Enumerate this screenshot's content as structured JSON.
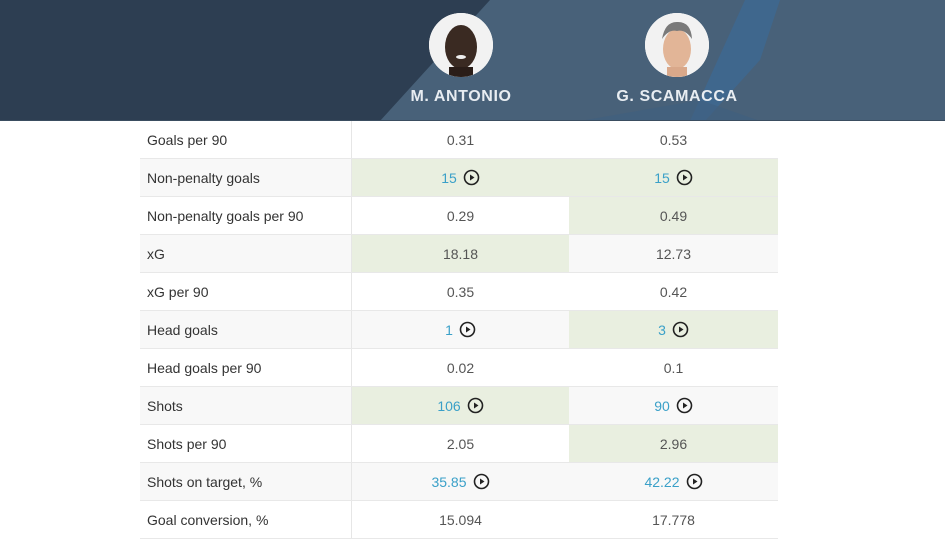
{
  "header": {
    "players": [
      {
        "name": "M. ANTONIO",
        "avatar_icon": "player-photo"
      },
      {
        "name": "G. SCAMACCA",
        "avatar_icon": "player-photo"
      }
    ],
    "colors": {
      "bg_dark": "#2d3e52",
      "bg_light": "#486179",
      "accent": "#3c6a96"
    }
  },
  "table": {
    "colors": {
      "win": "#e9efe0",
      "link": "#3aa0c8",
      "alt_row": "#f8f8f8"
    },
    "rows": [
      {
        "label": "Goals per 90",
        "p1": "0.31",
        "p2": "0.53",
        "p1_win": false,
        "p2_win": false,
        "video": false
      },
      {
        "label": "Non-penalty goals",
        "p1": "15",
        "p2": "15",
        "p1_win": true,
        "p2_win": true,
        "video": true
      },
      {
        "label": "Non-penalty goals per 90",
        "p1": "0.29",
        "p2": "0.49",
        "p1_win": false,
        "p2_win": true,
        "video": false
      },
      {
        "label": "xG",
        "p1": "18.18",
        "p2": "12.73",
        "p1_win": true,
        "p2_win": false,
        "video": false
      },
      {
        "label": "xG per 90",
        "p1": "0.35",
        "p2": "0.42",
        "p1_win": false,
        "p2_win": false,
        "video": false
      },
      {
        "label": "Head goals",
        "p1": "1",
        "p2": "3",
        "p1_win": false,
        "p2_win": true,
        "video": true
      },
      {
        "label": "Head goals per 90",
        "p1": "0.02",
        "p2": "0.1",
        "p1_win": false,
        "p2_win": false,
        "video": false
      },
      {
        "label": "Shots",
        "p1": "106",
        "p2": "90",
        "p1_win": true,
        "p2_win": false,
        "video": true
      },
      {
        "label": "Shots per 90",
        "p1": "2.05",
        "p2": "2.96",
        "p1_win": false,
        "p2_win": true,
        "video": false
      },
      {
        "label": "Shots on target, %",
        "p1": "35.85",
        "p2": "42.22",
        "p1_win": false,
        "p2_win": false,
        "video": true
      },
      {
        "label": "Goal conversion, %",
        "p1": "15.094",
        "p2": "17.778",
        "p1_win": false,
        "p2_win": false,
        "video": false
      }
    ]
  }
}
